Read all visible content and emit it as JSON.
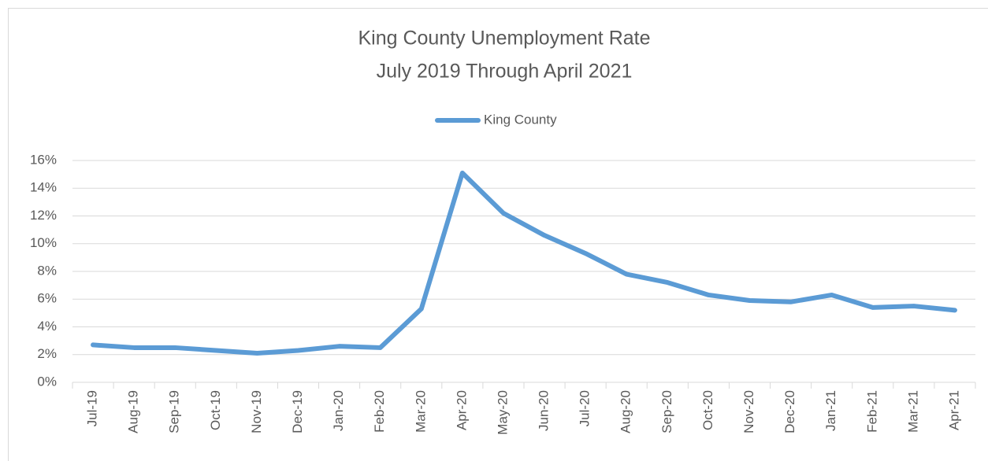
{
  "chart_data": {
    "type": "line",
    "title": [
      "King County Unemployment Rate",
      "July 2019 Through April 2021"
    ],
    "categories": [
      "Jul-19",
      "Aug-19",
      "Sep-19",
      "Oct-19",
      "Nov-19",
      "Dec-19",
      "Jan-20",
      "Feb-20",
      "Mar-20",
      "Apr-20",
      "May-20",
      "Jun-20",
      "Jul-20",
      "Aug-20",
      "Sep-20",
      "Oct-20",
      "Nov-20",
      "Dec-20",
      "Jan-21",
      "Feb-21",
      "Mar-21",
      "Apr-21"
    ],
    "series": [
      {
        "name": "King County",
        "color": "#5b9bd5",
        "values": [
          2.7,
          2.5,
          2.5,
          2.3,
          2.1,
          2.3,
          2.6,
          2.5,
          5.3,
          15.1,
          12.2,
          10.6,
          9.3,
          7.8,
          7.2,
          6.3,
          5.9,
          5.8,
          6.3,
          5.4,
          5.5,
          5.2
        ]
      }
    ],
    "ylim": [
      0,
      16
    ],
    "yticks": [
      {
        "value": 0,
        "label": "0%"
      },
      {
        "value": 2,
        "label": "2%"
      },
      {
        "value": 4,
        "label": "4%"
      },
      {
        "value": 6,
        "label": "6%"
      },
      {
        "value": 8,
        "label": "8%"
      },
      {
        "value": 10,
        "label": "10%"
      },
      {
        "value": 12,
        "label": "12%"
      },
      {
        "value": 14,
        "label": "14%"
      },
      {
        "value": 16,
        "label": "16%"
      }
    ],
    "grid": true,
    "legend": "top"
  }
}
